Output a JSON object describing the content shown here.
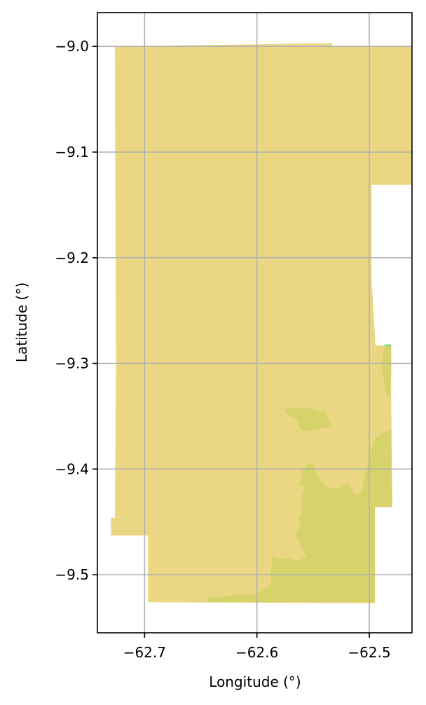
{
  "chart_data": {
    "type": "map",
    "xlabel": "Longitude (°)",
    "ylabel": "Latitude (°)",
    "xlim": [
      -62.742,
      -62.462
    ],
    "ylim": [
      -9.555,
      -8.968
    ],
    "xticks": [
      -62.7,
      -62.6,
      -62.5
    ],
    "yticks": [
      -9.0,
      -9.1,
      -9.2,
      -9.3,
      -9.4,
      -9.5
    ],
    "xtick_labels": [
      "−62.7",
      "−62.6",
      "−62.5"
    ],
    "ytick_labels": [
      "−9.0",
      "−9.1",
      "−9.2",
      "−9.3",
      "−9.4",
      "−9.5"
    ],
    "grid": true,
    "colors": {
      "main_region": "#ebd783",
      "secondary_region": "#d6d36a",
      "small_patch": "#7fe07f",
      "grid": "#b0b0b0"
    },
    "regions": [
      {
        "name": "main-region",
        "color_key": "main_region",
        "coords": [
          [
            -62.7265,
            -9.0
          ],
          [
            -62.5335,
            -8.997
          ],
          [
            -62.5325,
            -9.0
          ],
          [
            -62.4626,
            -9.0
          ],
          [
            -62.4626,
            -9.131
          ],
          [
            -62.498,
            -9.131
          ],
          [
            -62.498,
            -9.22
          ],
          [
            -62.4945,
            -9.283
          ],
          [
            -62.4805,
            -9.283
          ],
          [
            -62.4805,
            -9.33
          ],
          [
            -62.4795,
            -9.436
          ],
          [
            -62.495,
            -9.436
          ],
          [
            -62.495,
            -9.527
          ],
          [
            -62.697,
            -9.526
          ],
          [
            -62.697,
            -9.463
          ],
          [
            -62.73,
            -9.463
          ],
          [
            -62.73,
            -9.446
          ],
          [
            -62.7265,
            -9.446
          ],
          [
            -62.7255,
            -9.3
          ],
          [
            -62.7265,
            -9.0
          ]
        ]
      },
      {
        "name": "secondary-region-south",
        "color_key": "secondary_region",
        "coords": [
          [
            -62.644,
            -9.526
          ],
          [
            -62.495,
            -9.526
          ],
          [
            -62.495,
            -9.436
          ],
          [
            -62.4795,
            -9.436
          ],
          [
            -62.4805,
            -9.362
          ],
          [
            -62.4895,
            -9.367
          ],
          [
            -62.4945,
            -9.37
          ],
          [
            -62.4995,
            -9.384
          ],
          [
            -62.5035,
            -9.404
          ],
          [
            -62.5065,
            -9.42
          ],
          [
            -62.51,
            -9.425
          ],
          [
            -62.513,
            -9.424
          ],
          [
            -62.52,
            -9.413
          ],
          [
            -62.526,
            -9.418
          ],
          [
            -62.533,
            -9.418
          ],
          [
            -62.542,
            -9.417
          ],
          [
            -62.552,
            -9.413
          ],
          [
            -62.557,
            -9.414
          ],
          [
            -62.562,
            -9.415
          ],
          [
            -62.56,
            -9.407
          ],
          [
            -62.5605,
            -9.403
          ],
          [
            -62.557,
            -9.398
          ],
          [
            -62.555,
            -9.395
          ],
          [
            -62.55,
            -9.394
          ],
          [
            -62.547,
            -9.404
          ],
          [
            -62.543,
            -9.412
          ],
          [
            -62.536,
            -9.418
          ],
          [
            -62.533,
            -9.418
          ],
          [
            -62.536,
            -9.422
          ],
          [
            -62.544,
            -9.43
          ],
          [
            -62.549,
            -9.44
          ],
          [
            -62.545,
            -9.446
          ],
          [
            -62.541,
            -9.455
          ],
          [
            -62.538,
            -9.465
          ],
          [
            -62.539,
            -9.47
          ],
          [
            -62.546,
            -9.479
          ],
          [
            -62.556,
            -9.483
          ],
          [
            -62.5645,
            -9.487
          ],
          [
            -62.57,
            -9.484
          ],
          [
            -62.58,
            -9.485
          ],
          [
            -62.586,
            -9.482
          ],
          [
            -62.587,
            -9.491
          ],
          [
            -62.588,
            -9.498
          ],
          [
            -62.587,
            -9.508
          ],
          [
            -62.5895,
            -9.511
          ],
          [
            -62.6,
            -9.518
          ],
          [
            -62.61,
            -9.519
          ],
          [
            -62.62,
            -9.519
          ],
          [
            -62.63,
            -9.521
          ],
          [
            -62.644,
            -9.521
          ]
        ]
      },
      {
        "name": "secondary-region-west-band",
        "color_key": "secondary_region",
        "coords": [
          [
            -62.556,
            -9.483
          ],
          [
            -62.566,
            -9.462
          ],
          [
            -62.561,
            -9.452
          ],
          [
            -62.563,
            -9.447
          ],
          [
            -62.56,
            -9.44
          ],
          [
            -62.56,
            -9.426
          ],
          [
            -62.5575,
            -9.418
          ],
          [
            -62.562,
            -9.415
          ],
          [
            -62.557,
            -9.414
          ],
          [
            -62.552,
            -9.413
          ],
          [
            -62.542,
            -9.417
          ],
          [
            -62.533,
            -9.418
          ],
          [
            -62.536,
            -9.422
          ],
          [
            -62.544,
            -9.43
          ],
          [
            -62.549,
            -9.44
          ],
          [
            -62.545,
            -9.446
          ],
          [
            -62.541,
            -9.455
          ],
          [
            -62.538,
            -9.465
          ],
          [
            -62.539,
            -9.47
          ],
          [
            -62.546,
            -9.479
          ]
        ]
      },
      {
        "name": "secondary-region-north-patch",
        "color_key": "secondary_region",
        "coords": [
          [
            -62.575,
            -9.343
          ],
          [
            -62.565,
            -9.342
          ],
          [
            -62.555,
            -9.342
          ],
          [
            -62.544,
            -9.346
          ],
          [
            -62.539,
            -9.346
          ],
          [
            -62.5345,
            -9.356
          ],
          [
            -62.534,
            -9.361
          ],
          [
            -62.537,
            -9.36
          ],
          [
            -62.545,
            -9.362
          ],
          [
            -62.552,
            -9.364
          ],
          [
            -62.558,
            -9.364
          ],
          [
            -62.562,
            -9.361
          ],
          [
            -62.5635,
            -9.354
          ],
          [
            -62.57,
            -9.35
          ],
          [
            -62.574,
            -9.347
          ]
        ]
      },
      {
        "name": "secondary-region-east-strip",
        "color_key": "secondary_region",
        "coords": [
          [
            -62.4865,
            -9.284
          ],
          [
            -62.4805,
            -9.284
          ],
          [
            -62.4805,
            -9.305
          ],
          [
            -62.4815,
            -9.332
          ],
          [
            -62.4845,
            -9.33
          ],
          [
            -62.4865,
            -9.319
          ],
          [
            -62.4895,
            -9.3
          ]
        ]
      },
      {
        "name": "small-green-patch",
        "color_key": "small_patch",
        "coords": [
          [
            -62.4865,
            -9.282
          ],
          [
            -62.4805,
            -9.282
          ],
          [
            -62.4805,
            -9.284
          ],
          [
            -62.4865,
            -9.284
          ]
        ]
      }
    ]
  }
}
